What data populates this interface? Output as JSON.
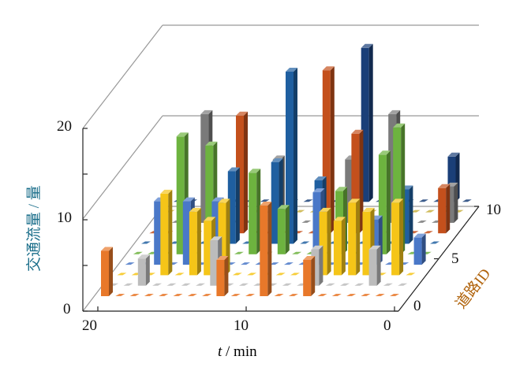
{
  "chart_data": {
    "type": "bar3d",
    "title": "",
    "xlabel_italic": "t",
    "xlabel_rest": " / min",
    "ylabel": "交通流量 / 量",
    "zlabel": "道路ID",
    "xlim": [
      0,
      20
    ],
    "ylim": [
      0,
      20
    ],
    "zlim": [
      0,
      10
    ],
    "x_ticks": [
      "20",
      "10",
      "0"
    ],
    "y_ticks": [
      "0",
      "10",
      "20"
    ],
    "z_ticks": [
      "0",
      "5",
      "10"
    ],
    "roads": [
      0,
      1,
      2,
      3,
      4,
      5,
      6,
      7,
      8,
      9
    ],
    "times": [
      20,
      19,
      18,
      17,
      16,
      15,
      14,
      13,
      12,
      11,
      10,
      9,
      8,
      7,
      6,
      5,
      4,
      3,
      2,
      1,
      0
    ],
    "colors": [
      "#e8782a",
      "#bcbcbc",
      "#f5c518",
      "#4a78c8",
      "#6db33f",
      "#1f5fa0",
      "#c4501c",
      "#7a7a7a",
      "#c8b040",
      "#1a3f78"
    ],
    "values": [
      [
        5,
        0,
        0,
        0,
        0,
        0,
        0,
        0,
        4,
        0,
        0,
        10,
        0,
        0,
        4,
        0,
        0,
        0,
        0,
        0,
        0
      ],
      [
        0,
        0,
        3,
        0,
        0,
        0,
        0,
        5,
        0,
        0,
        0,
        0,
        0,
        0,
        4,
        0,
        0,
        0,
        4,
        0,
        0
      ],
      [
        0,
        0,
        0,
        9,
        0,
        7,
        6,
        8,
        0,
        0,
        0,
        0,
        0,
        0,
        7,
        6,
        8,
        7,
        0,
        8,
        0
      ],
      [
        0,
        0,
        7,
        0,
        7,
        0,
        7,
        0,
        0,
        0,
        0,
        0,
        0,
        8,
        0,
        0,
        0,
        5,
        0,
        0,
        3
      ],
      [
        0,
        0,
        0,
        13,
        0,
        12,
        0,
        0,
        9,
        0,
        5,
        0,
        0,
        0,
        7,
        0,
        0,
        11,
        14,
        0,
        0
      ],
      [
        0,
        0,
        0,
        0,
        0,
        0,
        8,
        0,
        0,
        9,
        19,
        0,
        7,
        0,
        0,
        0,
        0,
        0,
        6,
        0,
        0
      ],
      [
        0,
        0,
        0,
        0,
        0,
        0,
        13,
        0,
        0,
        0,
        0,
        0,
        18,
        0,
        11,
        0,
        0,
        0,
        0,
        0,
        5
      ],
      [
        0,
        0,
        0,
        12,
        0,
        0,
        0,
        0,
        7,
        0,
        0,
        0,
        0,
        7,
        0,
        0,
        12,
        0,
        0,
        0,
        4
      ],
      [
        0,
        0,
        0,
        0,
        0,
        0,
        0,
        0,
        0,
        0,
        0,
        0,
        0,
        0,
        0,
        0,
        0,
        0,
        0,
        0,
        0
      ],
      [
        0,
        0,
        0,
        0,
        0,
        0,
        0,
        0,
        0,
        0,
        0,
        0,
        0,
        17,
        0,
        0,
        0,
        0,
        0,
        5,
        0
      ]
    ]
  }
}
